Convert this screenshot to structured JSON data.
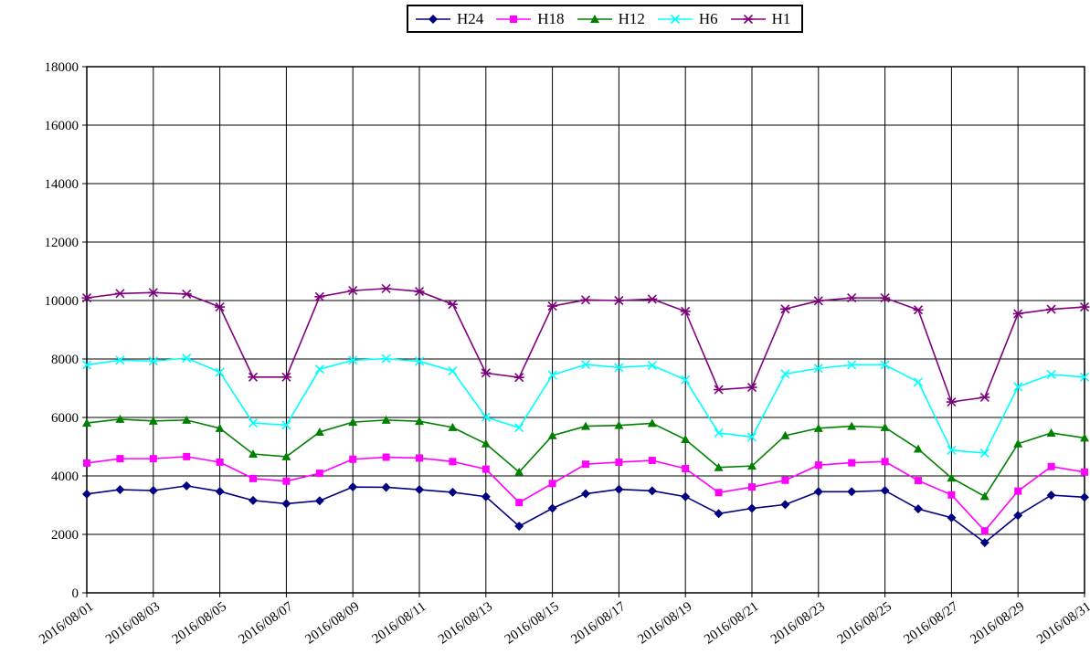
{
  "chart_data": {
    "type": "line",
    "title": "",
    "xlabel": "",
    "ylabel": "",
    "ylim": [
      0,
      18000
    ],
    "y_tick_step": 2000,
    "grid": true,
    "legend_position": "top-center",
    "x_label_every": 2,
    "categories": [
      "2016/08/01",
      "2016/08/02",
      "2016/08/03",
      "2016/08/04",
      "2016/08/05",
      "2016/08/06",
      "2016/08/07",
      "2016/08/08",
      "2016/08/09",
      "2016/08/10",
      "2016/08/11",
      "2016/08/12",
      "2016/08/13",
      "2016/08/14",
      "2016/08/15",
      "2016/08/16",
      "2016/08/17",
      "2016/08/18",
      "2016/08/19",
      "2016/08/20",
      "2016/08/21",
      "2016/08/22",
      "2016/08/23",
      "2016/08/24",
      "2016/08/25",
      "2016/08/26",
      "2016/08/27",
      "2016/08/28",
      "2016/08/29",
      "2016/08/30",
      "2016/08/31"
    ],
    "series": [
      {
        "name": "H24",
        "color": "#000080",
        "marker": "diamond",
        "values": [
          3380,
          3530,
          3500,
          3660,
          3470,
          3160,
          3050,
          3150,
          3620,
          3610,
          3530,
          3440,
          3290,
          2280,
          2890,
          3390,
          3540,
          3490,
          3290,
          2710,
          2890,
          3020,
          3460,
          3460,
          3500,
          2870,
          2570,
          1720,
          2650,
          3340,
          3270
        ]
      },
      {
        "name": "H18",
        "color": "#FF00FF",
        "marker": "square",
        "values": [
          4440,
          4590,
          4590,
          4660,
          4470,
          3910,
          3820,
          4090,
          4570,
          4640,
          4610,
          4490,
          4230,
          3090,
          3740,
          4400,
          4470,
          4530,
          4250,
          3430,
          3620,
          3850,
          4370,
          4450,
          4490,
          3840,
          3350,
          2120,
          3480,
          4320,
          4130
        ]
      },
      {
        "name": "H12",
        "color": "#008000",
        "marker": "triangle",
        "values": [
          5810,
          5940,
          5880,
          5910,
          5630,
          4750,
          4660,
          5500,
          5840,
          5910,
          5870,
          5660,
          5100,
          4130,
          5380,
          5700,
          5730,
          5800,
          5250,
          4290,
          4340,
          5380,
          5630,
          5700,
          5660,
          4920,
          3930,
          3300,
          5100,
          5470,
          5300
        ]
      },
      {
        "name": "H6",
        "color": "#00FFFF",
        "marker": "x",
        "values": [
          7800,
          7960,
          7930,
          8030,
          7550,
          5810,
          5740,
          7650,
          7960,
          8010,
          7920,
          7590,
          6010,
          5650,
          7450,
          7810,
          7710,
          7780,
          7290,
          5470,
          5330,
          7490,
          7680,
          7800,
          7800,
          7210,
          4880,
          4780,
          7050,
          7470,
          7380
        ]
      },
      {
        "name": "H1",
        "color": "#800080",
        "marker": "star",
        "values": [
          10090,
          10240,
          10270,
          10220,
          9780,
          7380,
          7380,
          10130,
          10340,
          10410,
          10310,
          9870,
          7520,
          7370,
          9810,
          10020,
          10000,
          10050,
          9630,
          6950,
          7030,
          9710,
          9990,
          10090,
          10090,
          9680,
          6530,
          6690,
          9550,
          9700,
          9780
        ]
      }
    ]
  },
  "layout_colors": {
    "gridline": "#000000",
    "axis_text": "#000000",
    "plot_border": "#000000",
    "background": "#ffffff"
  }
}
